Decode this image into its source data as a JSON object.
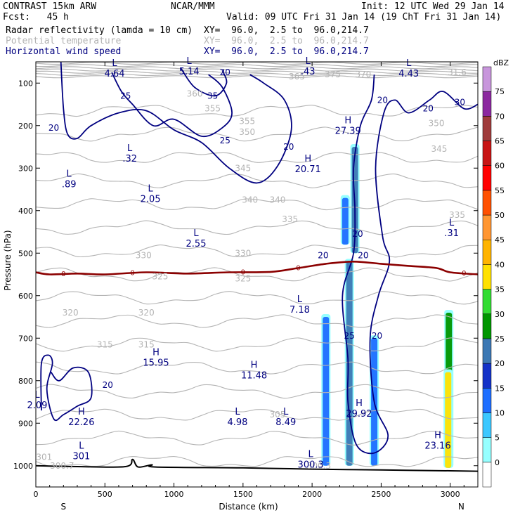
{
  "header": {
    "model": "CONTRAST 15km ARW",
    "agency": "NCAR/MMM",
    "init": "Init: 12 UTC Wed 29 Jan 14",
    "fcst": "Fcst:   45 h",
    "valid": "Valid: 09 UTC Fri 31 Jan 14 (19 ChT Fri 31 Jan 14)",
    "fields": [
      {
        "name": "Radar reflectivity (lamda = 10 cm)",
        "xy": "XY=  96.0,  2.5 to  96.0,214.7",
        "color": "#000000"
      },
      {
        "name": "Potential temperature",
        "xy": "XY=  96.0,  2.5 to  96.0,214.7",
        "color": "#b4b4b4"
      },
      {
        "name": "Horizontal wind speed",
        "xy": "XY=  96.0,  2.5 to  96.0,214.7",
        "color": "#000080"
      }
    ]
  },
  "colors": {
    "theta": "#b4b4b4",
    "wind": "#000080",
    "freezing": "#8b0000",
    "terrain": "#000000"
  },
  "chart_data": {
    "type": "cross-section",
    "xlabel": "Distance (km)",
    "ylabel": "Pressure (hPa)",
    "xlim": [
      0,
      3200
    ],
    "ylim": [
      1050,
      50
    ],
    "x_ticks": [
      0,
      500,
      1000,
      1500,
      2000,
      2500,
      3000
    ],
    "y_ticks": [
      100,
      200,
      300,
      400,
      500,
      600,
      700,
      800,
      900,
      1000
    ],
    "end_labels": {
      "left": "S",
      "right": "N"
    },
    "colorbar": {
      "unit": "dBZ",
      "levels": [
        0,
        5,
        10,
        15,
        20,
        25,
        30,
        35,
        40,
        45,
        50,
        55,
        60,
        65,
        70,
        75
      ],
      "colors": [
        "#ffffff",
        "#96ffff",
        "#3cc8ff",
        "#1e6eff",
        "#1432c8",
        "#3c78b4",
        "#009600",
        "#32dc32",
        "#ffe100",
        "#ffb400",
        "#ff9632",
        "#ff5000",
        "#ff0000",
        "#c81414",
        "#a03c3c",
        "#8c28a0",
        "#c896dc"
      ]
    },
    "theta_labels": [
      {
        "x": 190,
        "p": 1000,
        "v": "300.7"
      },
      {
        "x": 60,
        "p": 980,
        "v": "301"
      },
      {
        "x": 1750,
        "p": 880,
        "v": "305"
      },
      {
        "x": 500,
        "p": 715,
        "v": "315"
      },
      {
        "x": 800,
        "p": 715,
        "v": "315"
      },
      {
        "x": 250,
        "p": 640,
        "v": "320"
      },
      {
        "x": 800,
        "p": 640,
        "v": "320"
      },
      {
        "x": 900,
        "p": 555,
        "v": "325"
      },
      {
        "x": 1500,
        "p": 560,
        "v": "325"
      },
      {
        "x": 780,
        "p": 505,
        "v": "330"
      },
      {
        "x": 1500,
        "p": 500,
        "v": "330"
      },
      {
        "x": 1840,
        "p": 420,
        "v": "335"
      },
      {
        "x": 3050,
        "p": 410,
        "v": "335"
      },
      {
        "x": 1550,
        "p": 375,
        "v": "340"
      },
      {
        "x": 1750,
        "p": 375,
        "v": "340"
      },
      {
        "x": 1500,
        "p": 300,
        "v": "345"
      },
      {
        "x": 2920,
        "p": 255,
        "v": "345"
      },
      {
        "x": 1530,
        "p": 215,
        "v": "350"
      },
      {
        "x": 2900,
        "p": 195,
        "v": "350"
      },
      {
        "x": 1530,
        "p": 190,
        "v": "355"
      },
      {
        "x": 1280,
        "p": 160,
        "v": "355"
      },
      {
        "x": 1150,
        "p": 125,
        "v": "360"
      },
      {
        "x": 1890,
        "p": 85,
        "v": "365"
      },
      {
        "x": 2150,
        "p": 80,
        "v": "375"
      },
      {
        "x": 2370,
        "p": 80,
        "v": "370"
      },
      {
        "x": 3050,
        "p": 75,
        "v": "31.6"
      },
      {
        "x": 2050,
        "p": 1000,
        "v": "300.3"
      }
    ],
    "wind_labels": [
      {
        "x": 130,
        "p": 205,
        "v": "20"
      },
      {
        "x": 650,
        "p": 130,
        "v": "25"
      },
      {
        "x": 1280,
        "p": 130,
        "v": "35"
      },
      {
        "x": 1370,
        "p": 75,
        "v": "20"
      },
      {
        "x": 1370,
        "p": 235,
        "v": "25"
      },
      {
        "x": 1830,
        "p": 250,
        "v": "20"
      },
      {
        "x": 2510,
        "p": 140,
        "v": "20"
      },
      {
        "x": 2840,
        "p": 160,
        "v": "20"
      },
      {
        "x": 3070,
        "p": 145,
        "v": "30"
      },
      {
        "x": 2080,
        "p": 505,
        "v": "20"
      },
      {
        "x": 2330,
        "p": 455,
        "v": "20"
      },
      {
        "x": 2370,
        "p": 505,
        "v": "20"
      },
      {
        "x": 2270,
        "p": 695,
        "v": "25"
      },
      {
        "x": 2470,
        "p": 695,
        "v": "20"
      },
      {
        "x": 520,
        "p": 810,
        "v": "20"
      }
    ],
    "extrema": [
      {
        "x": 570,
        "p": 60,
        "type": "L",
        "v": "4.64"
      },
      {
        "x": 1110,
        "p": 55,
        "type": "L",
        "v": "5.14"
      },
      {
        "x": 1970,
        "p": 55,
        "type": "L",
        "v": ".43"
      },
      {
        "x": 2700,
        "p": 60,
        "type": "L",
        "v": "4.43"
      },
      {
        "x": 2260,
        "p": 195,
        "type": "H",
        "v": "27.39"
      },
      {
        "x": 1970,
        "p": 285,
        "type": "H",
        "v": "20.71"
      },
      {
        "x": 680,
        "p": 260,
        "type": "L",
        "v": ".32"
      },
      {
        "x": 240,
        "p": 320,
        "type": "L",
        "v": ".89"
      },
      {
        "x": 830,
        "p": 355,
        "type": "L",
        "v": "2.05"
      },
      {
        "x": 1160,
        "p": 460,
        "type": "L",
        "v": "2.55"
      },
      {
        "x": 3010,
        "p": 435,
        "type": "L",
        "v": ".31"
      },
      {
        "x": 1910,
        "p": 615,
        "type": "L",
        "v": "7.18"
      },
      {
        "x": 870,
        "p": 740,
        "type": "H",
        "v": "15.95"
      },
      {
        "x": 1580,
        "p": 770,
        "type": "H",
        "v": "11.48"
      },
      {
        "x": 10,
        "p": 840,
        "type": "L",
        "v": "2.09"
      },
      {
        "x": 330,
        "p": 880,
        "type": "H",
        "v": "22.26"
      },
      {
        "x": 2340,
        "p": 860,
        "type": "H",
        "v": "29.92"
      },
      {
        "x": 1460,
        "p": 880,
        "type": "L",
        "v": "4.98"
      },
      {
        "x": 1810,
        "p": 880,
        "type": "L",
        "v": "8.49"
      },
      {
        "x": 2910,
        "p": 935,
        "type": "H",
        "v": "23.16"
      },
      {
        "x": 330,
        "p": 960,
        "type": "L",
        "v": "301"
      },
      {
        "x": 1990,
        "p": 980,
        "type": "L",
        "v": "300.3"
      }
    ],
    "freezing_level": {
      "label": "0",
      "points": [
        [
          0,
          545
        ],
        [
          100,
          550
        ],
        [
          300,
          548
        ],
        [
          500,
          550
        ],
        [
          800,
          545
        ],
        [
          1100,
          548
        ],
        [
          1400,
          545
        ],
        [
          1700,
          544
        ],
        [
          1900,
          535
        ],
        [
          2100,
          525
        ],
        [
          2300,
          520
        ],
        [
          2500,
          525
        ],
        [
          2700,
          530
        ],
        [
          2900,
          535
        ],
        [
          3000,
          545
        ],
        [
          3200,
          550
        ]
      ]
    },
    "wind_contours": [
      {
        "level": 20,
        "points": [
          [
            180,
            40
          ],
          [
            200,
            160
          ],
          [
            230,
            220
          ],
          [
            300,
            230
          ],
          [
            400,
            200
          ],
          [
            600,
            170
          ],
          [
            800,
            165
          ],
          [
            1000,
            210
          ],
          [
            1200,
            240
          ],
          [
            1400,
            300
          ],
          [
            1600,
            335
          ],
          [
            1750,
            295
          ],
          [
            1850,
            210
          ],
          [
            1800,
            140
          ],
          [
            1650,
            100
          ],
          [
            1550,
            80
          ]
        ]
      },
      {
        "level": 25,
        "points": [
          [
            550,
            75
          ],
          [
            620,
            120
          ],
          [
            700,
            150
          ],
          [
            850,
            200
          ],
          [
            1000,
            185
          ],
          [
            1200,
            225
          ],
          [
            1350,
            205
          ],
          [
            1420,
            170
          ],
          [
            1350,
            110
          ],
          [
            1250,
            80
          ]
        ]
      },
      {
        "level": 35,
        "points": [
          [
            1050,
            65
          ],
          [
            1150,
            110
          ],
          [
            1300,
            130
          ],
          [
            1380,
            100
          ],
          [
            1350,
            70
          ]
        ]
      },
      {
        "level": 20,
        "points": [
          [
            2450,
            80
          ],
          [
            2430,
            140
          ],
          [
            2350,
            200
          ],
          [
            2300,
            300
          ],
          [
            2310,
            400
          ],
          [
            2300,
            500
          ],
          [
            2220,
            600
          ],
          [
            2260,
            750
          ],
          [
            2260,
            850
          ],
          [
            2320,
            950
          ],
          [
            2450,
            970
          ],
          [
            2550,
            930
          ],
          [
            2450,
            850
          ],
          [
            2420,
            700
          ],
          [
            2480,
            600
          ],
          [
            2560,
            520
          ],
          [
            2510,
            460
          ],
          [
            2460,
            300
          ],
          [
            2520,
            170
          ],
          [
            2600,
            140
          ],
          [
            2700,
            170
          ],
          [
            2850,
            140
          ],
          [
            2950,
            120
          ],
          [
            3100,
            160
          ],
          [
            3200,
            150
          ]
        ]
      },
      {
        "level": 20,
        "points": [
          [
            40,
            870
          ],
          [
            40,
            760
          ],
          [
            90,
            740
          ],
          [
            120,
            760
          ],
          [
            80,
            820
          ],
          [
            130,
            890
          ],
          [
            200,
            880
          ],
          [
            300,
            860
          ],
          [
            400,
            840
          ],
          [
            380,
            780
          ],
          [
            270,
            770
          ],
          [
            170,
            800
          ],
          [
            110,
            780
          ]
        ]
      }
    ],
    "reflectivity_cells": [
      {
        "x": 2100,
        "p_top": 650,
        "p_bot": 1000,
        "dbz": 10
      },
      {
        "x": 2270,
        "p_top": 520,
        "p_bot": 1000,
        "dbz": 20
      },
      {
        "x": 2310,
        "p_top": 250,
        "p_bot": 500,
        "dbz": 20
      },
      {
        "x": 2240,
        "p_top": 370,
        "p_bot": 480,
        "dbz": 10
      },
      {
        "x": 2450,
        "p_top": 700,
        "p_bot": 1000,
        "dbz": 12
      },
      {
        "x": 2990,
        "p_top": 640,
        "p_bot": 1005,
        "dbz": 25
      },
      {
        "x": 2985,
        "p_top": 780,
        "p_bot": 1005,
        "dbz": 35
      }
    ]
  }
}
